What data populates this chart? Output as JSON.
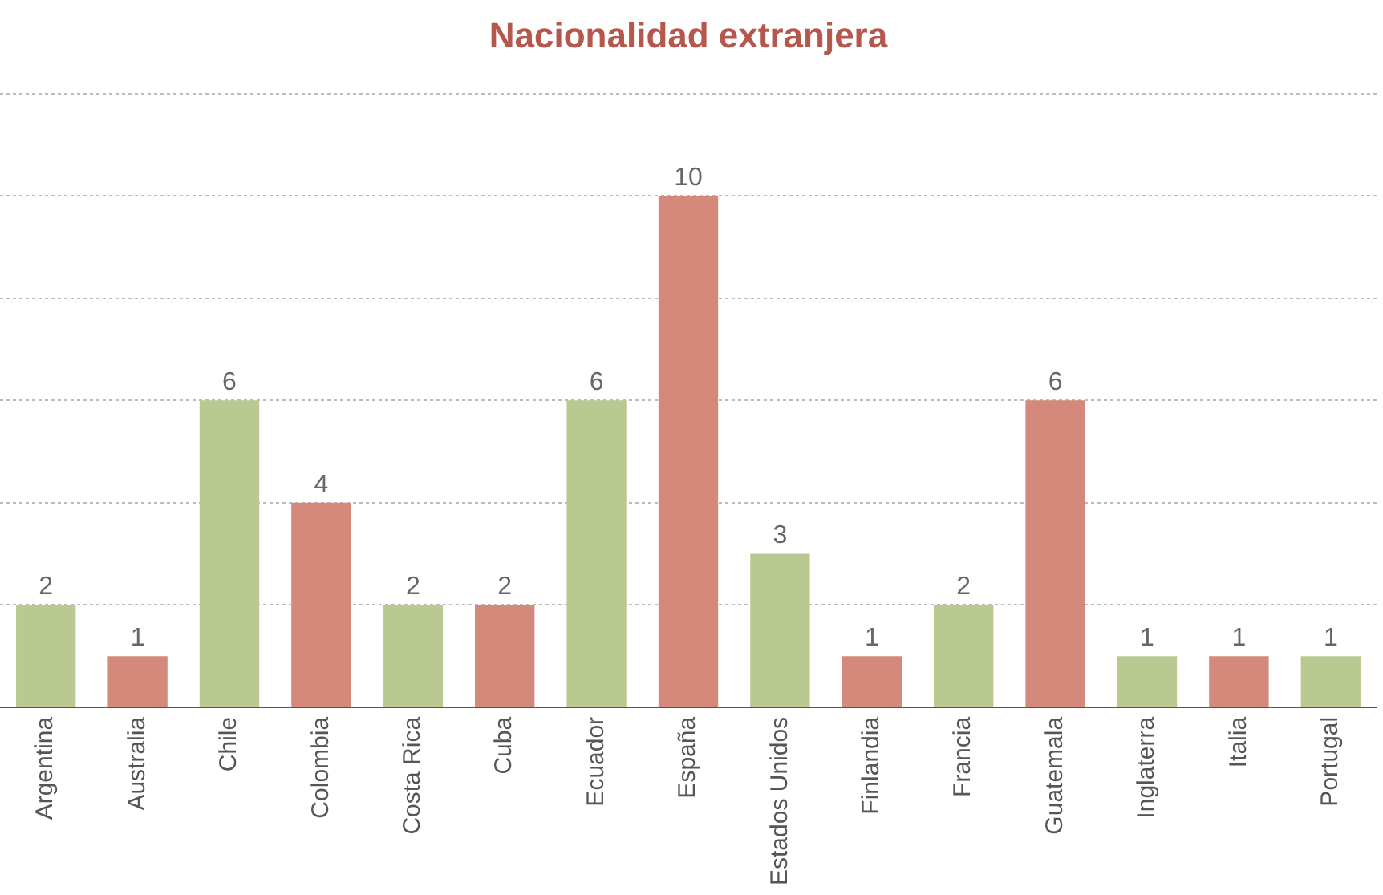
{
  "chart_data": {
    "type": "bar",
    "title": "Nacionalidad extranjera",
    "categories": [
      "Argentina",
      "Australia",
      "Chile",
      "Colombia",
      "Costa Rica",
      "Cuba",
      "Ecuador",
      "España",
      "Estados Unidos",
      "Finlandia",
      "Francia",
      "Guatemala",
      "Inglaterra",
      "Italia",
      "Portugal"
    ],
    "values": [
      2,
      1,
      6,
      4,
      2,
      2,
      6,
      10,
      3,
      1,
      2,
      6,
      1,
      1,
      1
    ],
    "colors": [
      "#b9c990",
      "#d4897b",
      "#b9c990",
      "#d4897b",
      "#b9c990",
      "#d4897b",
      "#b9c990",
      "#d4897b",
      "#b9c990",
      "#d4897b",
      "#b9c990",
      "#d4897b",
      "#b9c990",
      "#d4897b",
      "#b9c990"
    ],
    "ylim": [
      0,
      12
    ],
    "yticks": [
      {
        "value": 0,
        "label": null
      },
      {
        "value": 2,
        "label": null
      },
      {
        "value": 4,
        "label": null
      },
      {
        "value": 6,
        "label": null
      },
      {
        "value": 8,
        "label": null
      },
      {
        "value": 10,
        "label": null
      },
      {
        "value": 12,
        "label": null
      }
    ],
    "grid": "y",
    "tick_labels": "x",
    "data_labels": true
  }
}
